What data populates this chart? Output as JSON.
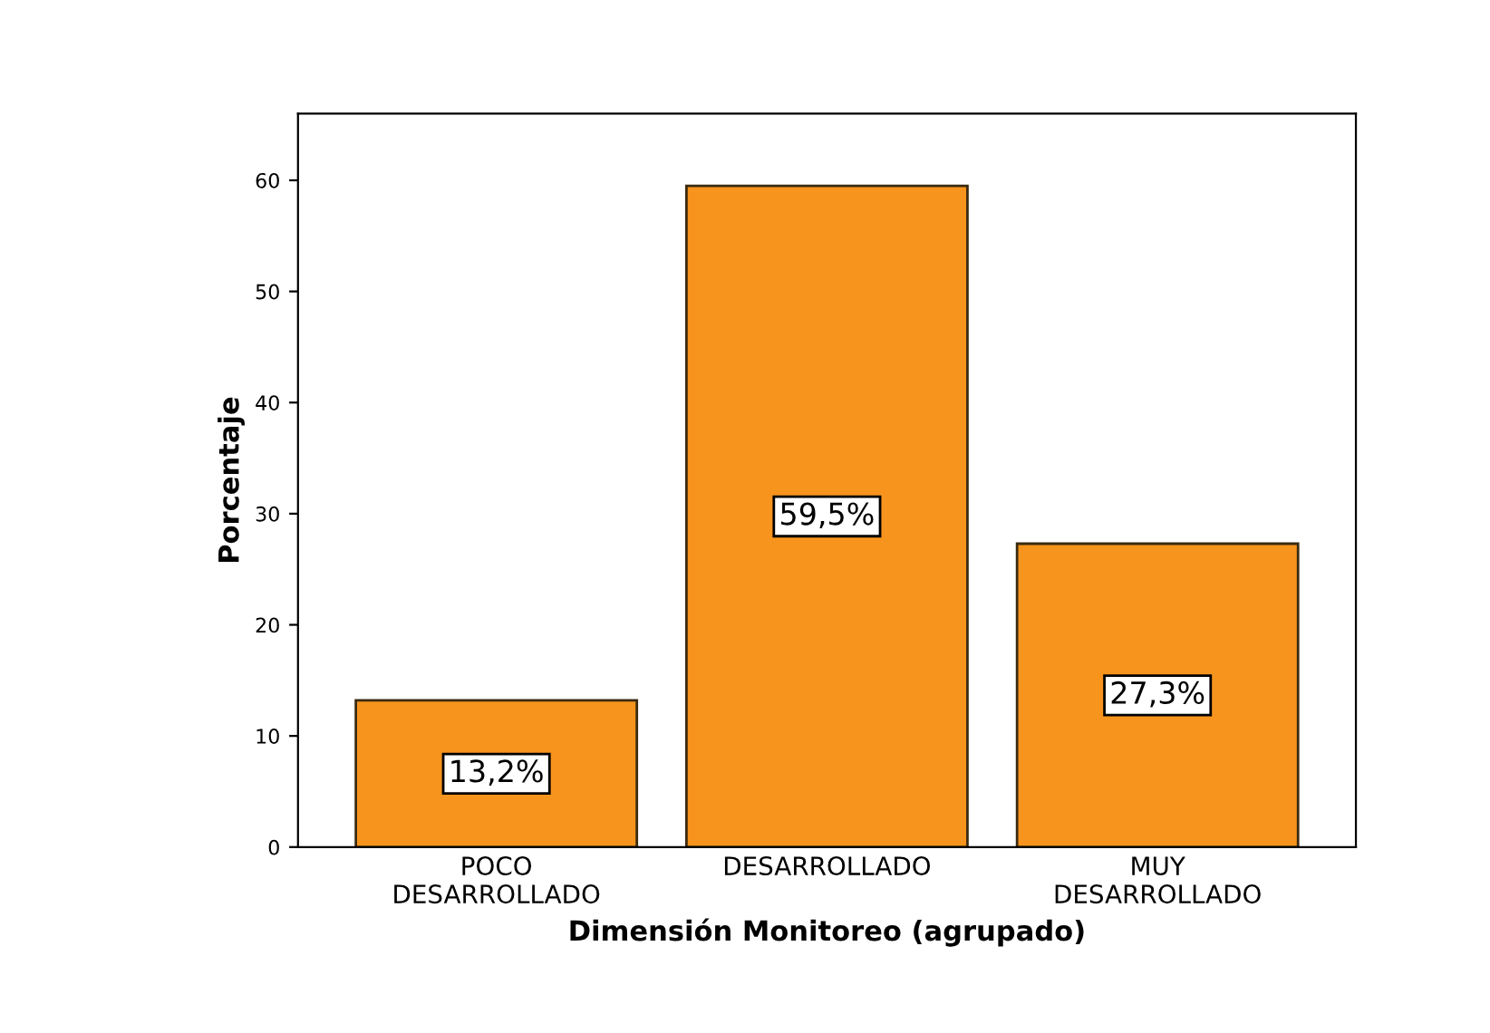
{
  "chart_data": {
    "type": "bar",
    "xlabel": "Dimensión Monitoreo (agrupado)",
    "ylabel": "Porcentaje",
    "categories": [
      "POCO\nDESARROLLADO",
      "DESARROLLADO",
      "MUY\nDESARROLLADO"
    ],
    "values": [
      13.2,
      59.5,
      27.3
    ],
    "value_labels": [
      "13,2%",
      "59,5%",
      "27,3%"
    ],
    "color": "#f7941d",
    "ylim": [
      0,
      66
    ],
    "yticks": [
      0,
      10,
      20,
      30,
      40,
      50,
      60
    ]
  }
}
